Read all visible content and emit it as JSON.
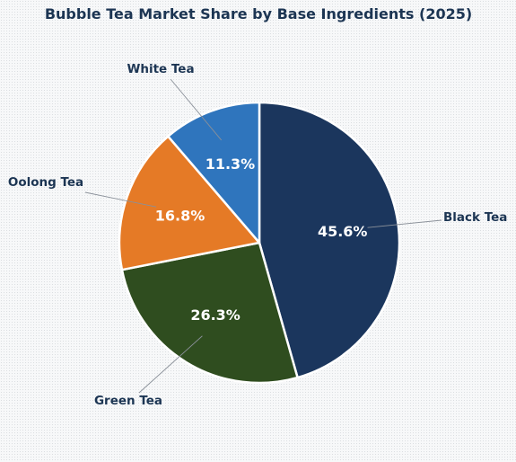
{
  "chart_data": {
    "type": "pie",
    "title": "Bubble Tea Market Share by Base Ingredients (2025)",
    "categories": [
      "Black Tea",
      "Green Tea",
      "Oolong Tea",
      "White Tea"
    ],
    "values": [
      45.6,
      26.3,
      16.8,
      11.3
    ],
    "value_labels": [
      "45.6%",
      "26.3%",
      "16.8%",
      "11.3%"
    ],
    "colors": [
      "#1b365d",
      "#2f4d1f",
      "#e57a26",
      "#2f75bd"
    ],
    "start_angle": "12 o'clock",
    "direction": "clockwise",
    "legend": "none"
  }
}
